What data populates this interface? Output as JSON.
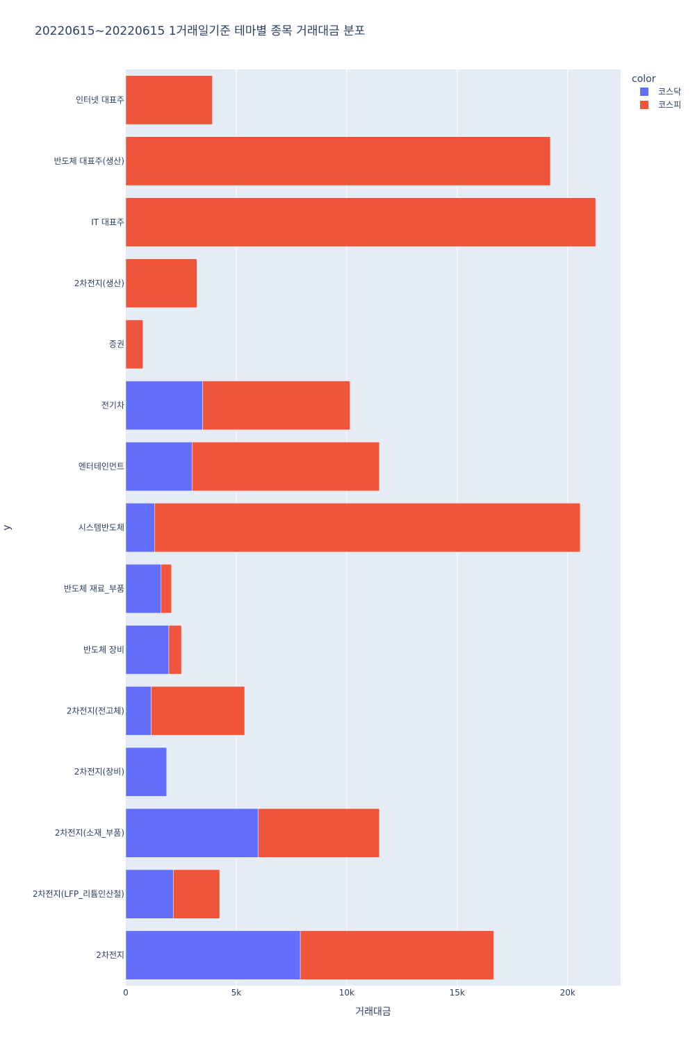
{
  "chart_data": {
    "type": "bar",
    "orientation": "horizontal",
    "barmode": "stack",
    "title": "20220615~20220615 1거래일기준 테마별 종목 거래대금 분포",
    "xlabel": "거래대금",
    "ylabel": "y",
    "xlim": [
      0,
      22400
    ],
    "x_ticks": [
      0,
      5000,
      10000,
      15000,
      20000
    ],
    "x_tick_labels": [
      "0",
      "5k",
      "10k",
      "15k",
      "20k"
    ],
    "grid": true,
    "legend_title": "color",
    "legend_position": "top-right",
    "categories": [
      "인터넷 대표주",
      "반도체 대표주(생산)",
      "IT 대표주",
      "2차전지(생산)",
      "증권",
      "전기차",
      "엔터테인먼트",
      "시스템반도체",
      "반도체 재료_부품",
      "반도체 장비",
      "2차전지(전고체)",
      "2차전지(장비)",
      "2차전지(소재_부품)",
      "2차전지(LFP_리튬인산철)",
      "2차전지"
    ],
    "series": [
      {
        "name": "코스닥",
        "color": "#636efa",
        "values": [
          0,
          0,
          0,
          0,
          0,
          3480,
          3000,
          1300,
          1600,
          1950,
          1150,
          1850,
          6000,
          2150,
          7900
        ]
      },
      {
        "name": "코스피",
        "color": "#ef553b",
        "values": [
          3920,
          19220,
          21270,
          3220,
          780,
          6670,
          8480,
          19270,
          470,
          570,
          4230,
          0,
          5480,
          2100,
          8760
        ]
      }
    ]
  }
}
